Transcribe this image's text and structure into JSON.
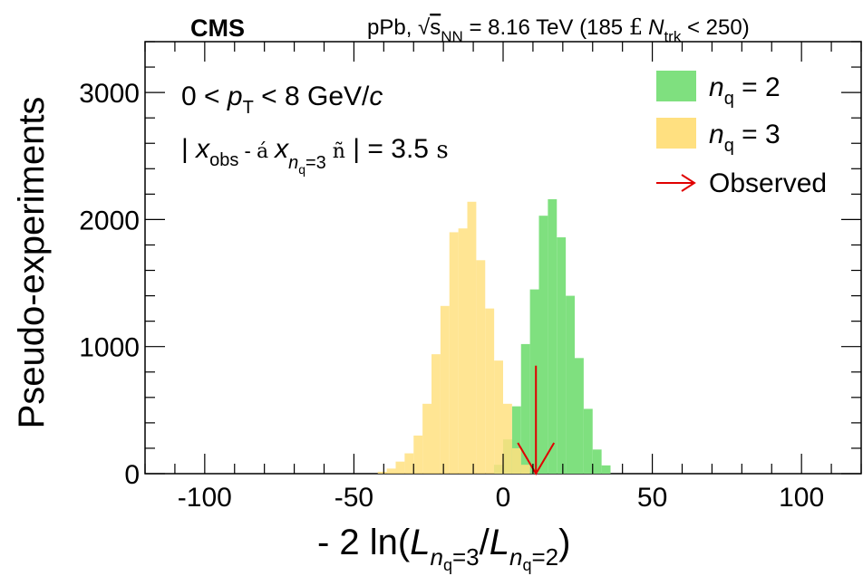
{
  "header": {
    "experiment": "CMS",
    "collision_text": "pPb, ",
    "sqrt_symbol": "√",
    "s_var": "s",
    "s_sub": "NN",
    "energy_text": " = 8.16 TeV (185 ",
    "le_symbol": "£",
    "n_var": "N",
    "n_sub": "trk",
    "n_range_end": " < 250)"
  },
  "annotations": {
    "pt_lhs": "0 < ",
    "pt_var": "p",
    "pt_sub": "T",
    "pt_rhs": " < 8 GeV/",
    "pt_c": "c",
    "chi_open_bar": "| ",
    "chi_var": "x",
    "chi_obs_sub": "obs",
    "chi_minus": " - ",
    "chi_open_angle": "á ",
    "chi_var2": "x",
    "chi_nq_sub": "n",
    "chi_nq_subsub": "q",
    "chi_nq_eq": "=3",
    "chi_close_angle": " ñ",
    "chi_close": " | = 3.5 ",
    "chi_sigma": "s"
  },
  "chart_data": {
    "type": "bar",
    "xlabel": "- 2 ln(Ln_q=3/Ln_q=2)",
    "ylabel": "Pseudo-experiments",
    "xlim": [
      -120,
      120
    ],
    "ylim": [
      0,
      3400
    ],
    "xticks": [
      -100,
      -50,
      0,
      50,
      100
    ],
    "xtick_labels": [
      "-100",
      "-50",
      "0",
      "50",
      "100"
    ],
    "yticks": [
      0,
      1000,
      2000,
      3000
    ],
    "ytick_labels": [
      "0",
      "1000",
      "2000",
      "3000"
    ],
    "bin_width": 3,
    "series": [
      {
        "name": "n_q = 2",
        "color": "#7fe07f",
        "bin_starts": [
          -3,
          0,
          3,
          6,
          9,
          12,
          15,
          18,
          21,
          24,
          27,
          30,
          33
        ],
        "values": [
          70,
          270,
          530,
          1020,
          1450,
          2030,
          2160,
          1860,
          1400,
          910,
          510,
          190,
          65
        ]
      },
      {
        "name": "n_q = 3",
        "color": "#ffe080",
        "bin_starts": [
          -42,
          -39,
          -36,
          -33,
          -30,
          -27,
          -24,
          -21,
          -18,
          -15,
          -12,
          -9,
          -6,
          -3,
          0,
          3,
          6
        ],
        "values": [
          15,
          40,
          95,
          160,
          300,
          550,
          940,
          1320,
          1900,
          1930,
          2140,
          1680,
          1300,
          890,
          550,
          200,
          70
        ]
      }
    ],
    "observed": {
      "name": "Observed",
      "x": 11,
      "color": "#e00000"
    },
    "legend": {
      "position": "top-right",
      "entries": [
        {
          "var": "n",
          "sub": "q",
          "rest": " = 2",
          "color": "#7fe07f"
        },
        {
          "var": "n",
          "sub": "q",
          "rest": " = 3",
          "color": "#ffe080"
        },
        {
          "label": "Observed",
          "color": "#e00000"
        }
      ]
    }
  }
}
